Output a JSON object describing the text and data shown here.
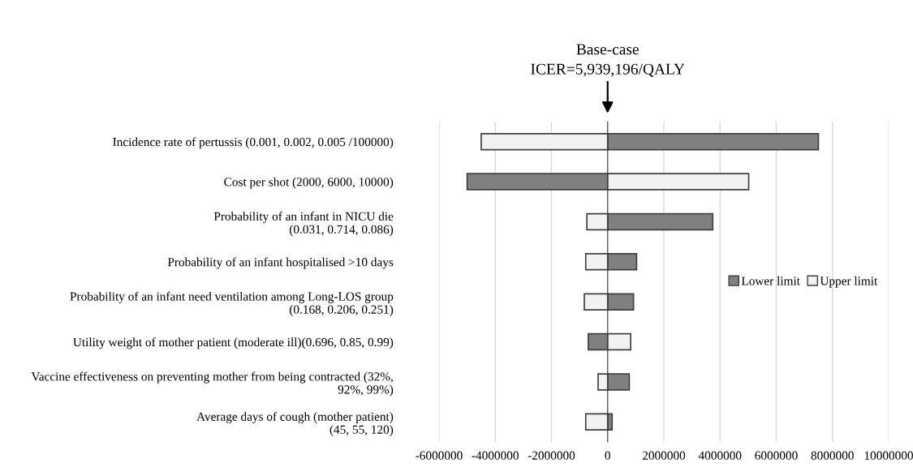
{
  "chart_data": {
    "type": "bar",
    "orientation": "horizontal",
    "categories": [
      "Incidence rate of pertussis (0.001, 0.002, 0.005 /100000)",
      "Cost per shot (2000, 6000, 10000)",
      "Probability of an infant in NICU die\n(0.031, 0.714, 0.086)",
      "Probability of an infant hospitalised >10 days",
      "Probability of an infant need ventilation among Long-LOS group\n(0.168, 0.206, 0.251)",
      "Utility weight of mother patient (moderate ill)(0.696, 0.85, 0.99)",
      "Vaccine effectiveness on preventing mother from being contracted (32%,\n92%, 99%)",
      "Average days of cough (mother patient)\n(45, 55, 120)"
    ],
    "series": [
      {
        "name": "Lower limit",
        "color": "#808080",
        "values": [
          7500000,
          -5000000,
          3740000,
          1030000,
          920000,
          -690000,
          770000,
          160000
        ]
      },
      {
        "name": "Upper limit",
        "color": "#f2f2f2",
        "values": [
          -4500000,
          5020000,
          -740000,
          -780000,
          -830000,
          820000,
          -340000,
          -780000
        ]
      }
    ],
    "xlim": [
      -6000000,
      10000000
    ],
    "xticks": [
      -6000000,
      -4000000,
      -2000000,
      0,
      2000000,
      4000000,
      6000000,
      8000000,
      10000000
    ],
    "grid": "x",
    "legend": "right",
    "stacked": true,
    "annotations": [
      "Base-case\nICER=5,939,196/QALY"
    ]
  }
}
